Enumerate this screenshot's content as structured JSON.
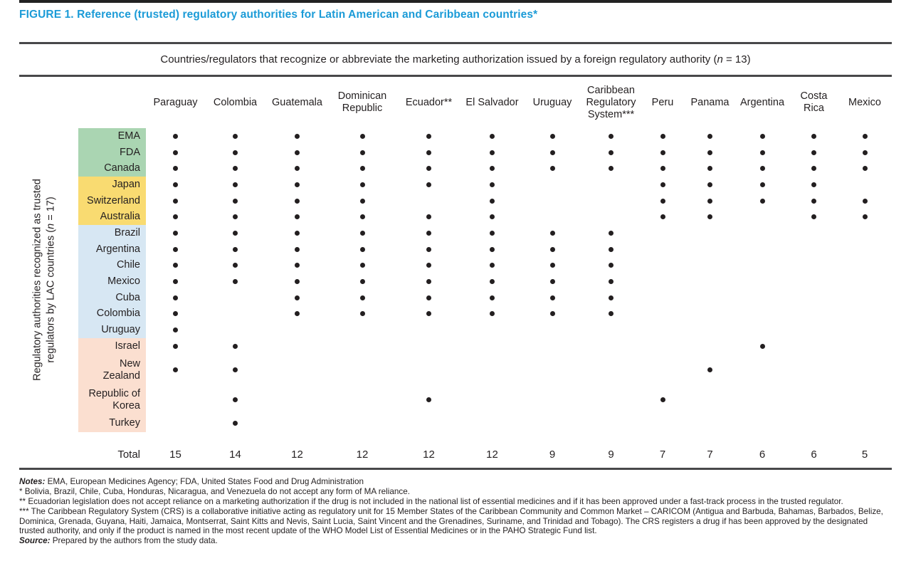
{
  "title": "FIGURE 1. Reference (trusted) regulatory authorities for Latin American and Caribbean countries*",
  "colors": {
    "title": "#1b9bd7",
    "rule": "#48484a",
    "dot": "#231f20",
    "groups": {
      "g1": "#aad5b2",
      "g2": "#f9db71",
      "g3": "#d7e7f3",
      "g4": "#fbdfd0"
    }
  },
  "top_header": {
    "text": "Countries/regulators that recognize or abbreviate the marketing authorization issued by a foreign regulatory authority (",
    "n_var": "n",
    "suffix": " = 13)"
  },
  "side_label": {
    "line1": "Regulatory authorities recognized as trusted",
    "line2_prefix": "regulators by LAC countries (",
    "n_var": "n",
    "line2_suffix": " = 17)"
  },
  "chart_data": {
    "type": "heatmap",
    "title": "Reference (trusted) regulatory authorities for Latin American and Caribbean countries",
    "columns": [
      "Paraguay",
      "Colombia",
      "Guatemala",
      "Dominican Republic",
      "Ecuador**",
      "El Salvador",
      "Uruguay",
      "Caribbean Regulatory System***",
      "Peru",
      "Panama",
      "Argentina",
      "Costa Rica",
      "Mexico"
    ],
    "rows": [
      {
        "label": "EMA",
        "group": "g1",
        "dots": [
          1,
          1,
          1,
          1,
          1,
          1,
          1,
          1,
          1,
          1,
          1,
          1,
          1
        ]
      },
      {
        "label": "FDA",
        "group": "g1",
        "dots": [
          1,
          1,
          1,
          1,
          1,
          1,
          1,
          1,
          1,
          1,
          1,
          1,
          1
        ]
      },
      {
        "label": "Canada",
        "group": "g1",
        "dots": [
          1,
          1,
          1,
          1,
          1,
          1,
          1,
          1,
          1,
          1,
          1,
          1,
          1
        ]
      },
      {
        "label": "Japan",
        "group": "g2",
        "dots": [
          1,
          1,
          1,
          1,
          1,
          1,
          0,
          0,
          1,
          1,
          1,
          1,
          0
        ]
      },
      {
        "label": "Switzerland",
        "group": "g2",
        "dots": [
          1,
          1,
          1,
          1,
          0,
          1,
          0,
          0,
          1,
          1,
          1,
          1,
          1
        ]
      },
      {
        "label": "Australia",
        "group": "g2",
        "dots": [
          1,
          1,
          1,
          1,
          1,
          1,
          0,
          0,
          1,
          1,
          0,
          1,
          1
        ]
      },
      {
        "label": "Brazil",
        "group": "g3",
        "dots": [
          1,
          1,
          1,
          1,
          1,
          1,
          1,
          1,
          0,
          0,
          0,
          0,
          0
        ]
      },
      {
        "label": "Argentina",
        "group": "g3",
        "dots": [
          1,
          1,
          1,
          1,
          1,
          1,
          1,
          1,
          0,
          0,
          0,
          0,
          0
        ]
      },
      {
        "label": "Chile",
        "group": "g3",
        "dots": [
          1,
          1,
          1,
          1,
          1,
          1,
          1,
          1,
          0,
          0,
          0,
          0,
          0
        ]
      },
      {
        "label": "Mexico",
        "group": "g3",
        "dots": [
          1,
          1,
          1,
          1,
          1,
          1,
          1,
          1,
          0,
          0,
          0,
          0,
          0
        ]
      },
      {
        "label": "Cuba",
        "group": "g3",
        "dots": [
          1,
          0,
          1,
          1,
          1,
          1,
          1,
          1,
          0,
          0,
          0,
          0,
          0
        ]
      },
      {
        "label": "Colombia",
        "group": "g3",
        "dots": [
          1,
          0,
          1,
          1,
          1,
          1,
          1,
          1,
          0,
          0,
          0,
          0,
          0
        ]
      },
      {
        "label": "Uruguay",
        "group": "g3",
        "dots": [
          1,
          0,
          0,
          0,
          0,
          0,
          0,
          0,
          0,
          0,
          0,
          0,
          0
        ]
      },
      {
        "label": "Israel",
        "group": "g4",
        "dots": [
          1,
          1,
          0,
          0,
          0,
          0,
          0,
          0,
          0,
          0,
          1,
          0,
          0
        ]
      },
      {
        "label": "New Zealand",
        "group": "g4",
        "dots": [
          1,
          1,
          0,
          0,
          0,
          0,
          0,
          0,
          0,
          1,
          0,
          0,
          0
        ]
      },
      {
        "label": "Republic of Korea",
        "group": "g4",
        "dots": [
          0,
          1,
          0,
          0,
          1,
          0,
          0,
          0,
          1,
          0,
          0,
          0,
          0
        ]
      },
      {
        "label": "Turkey",
        "group": "g4",
        "dots": [
          0,
          1,
          0,
          0,
          0,
          0,
          0,
          0,
          0,
          0,
          0,
          0,
          0
        ]
      }
    ],
    "totals": {
      "label": "Total",
      "values": [
        15,
        14,
        12,
        12,
        12,
        12,
        9,
        9,
        7,
        7,
        6,
        6,
        5
      ]
    }
  },
  "notes": [
    {
      "lead": "Notes:",
      "text": " EMA, European Medicines Agency; FDA, United States Food and Drug Administration"
    },
    {
      "lead": "",
      "text": "* Bolivia, Brazil, Chile, Cuba, Honduras, Nicaragua, and Venezuela do not accept any form of MA reliance."
    },
    {
      "lead": "",
      "text": "** Ecuadorian legislation does not accept reliance on a marketing authorization if the drug is not included in the national list of essential medicines and if it has been approved under a fast-track process in the trusted regulator."
    },
    {
      "lead": "",
      "text": "*** The Caribbean Regulatory System (CRS) is a collaborative initiative acting as regulatory unit for 15 Member States of the Caribbean Community and Common Market – CARICOM (Antigua and Barbuda, Bahamas, Barbados, Belize, Dominica, Grenada, Guyana, Haiti, Jamaica, Montserrat, Saint Kitts and Nevis, Saint Lucia, Saint Vincent and the Grenadines, Suriname, and Trinidad and Tobago). The CRS registers a drug if has been approved by the designated trusted authority, and only if the product is named in the most recent update of the WHO Model List of Essential Medicines or in the PAHO Strategic Fund list."
    },
    {
      "lead": "Source:",
      "text": " Prepared by the authors from the study data."
    }
  ]
}
